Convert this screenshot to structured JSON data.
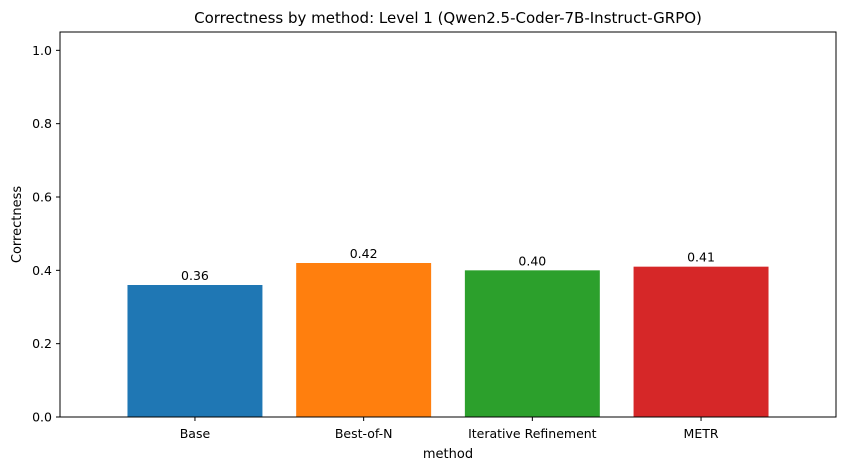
{
  "chart_data": {
    "type": "bar",
    "title": "Correctness by method: Level 1 (Qwen2.5-Coder-7B-Instruct-GRPO)",
    "xlabel": "method",
    "ylabel": "Correctness",
    "ylim": [
      0,
      1.05
    ],
    "yticks": [
      0.0,
      0.2,
      0.4,
      0.6,
      0.8,
      1.0
    ],
    "ytick_labels": [
      "0.0",
      "0.2",
      "0.4",
      "0.6",
      "0.8",
      "1.0"
    ],
    "categories": [
      "Base",
      "Best-of-N",
      "Iterative Refinement",
      "METR"
    ],
    "values": [
      0.36,
      0.42,
      0.4,
      0.41
    ],
    "value_labels": [
      "0.36",
      "0.42",
      "0.40",
      "0.41"
    ],
    "colors": [
      "#1f77b4",
      "#ff7f0e",
      "#2ca02c",
      "#d62728"
    ],
    "grid": false,
    "legend": "none"
  }
}
